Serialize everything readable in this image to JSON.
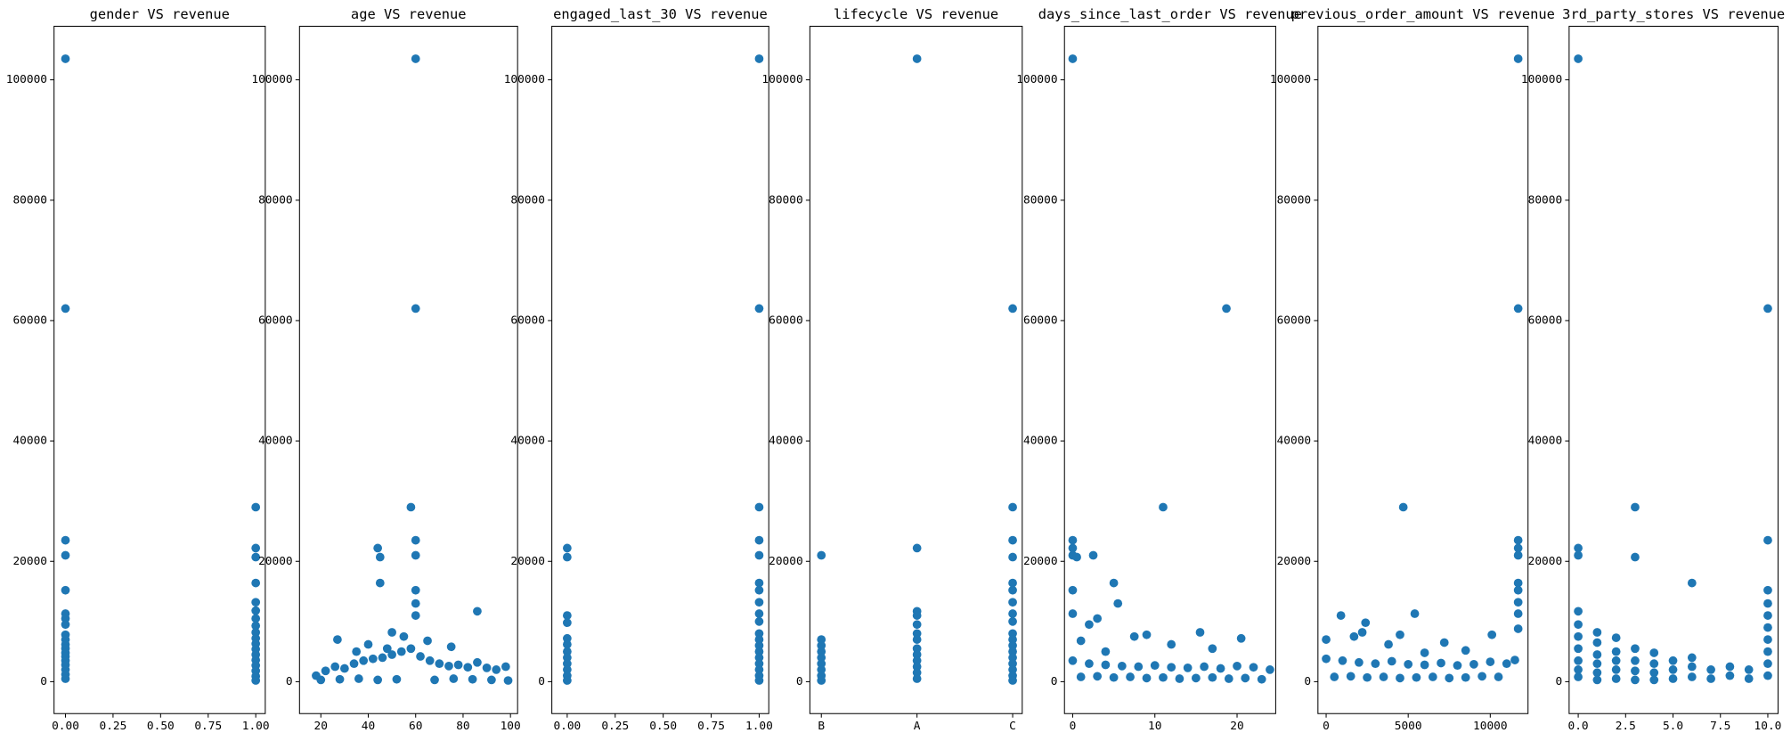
{
  "chart_data": [
    {
      "type": "scatter",
      "title": "gender VS revenue",
      "color": "#1f77b4",
      "x": [
        0,
        0,
        0,
        0,
        0,
        0,
        0,
        0,
        0,
        0,
        0,
        0,
        0,
        0,
        0,
        0,
        0,
        0,
        0,
        1,
        1,
        1,
        1,
        1,
        1,
        1,
        1,
        1,
        1,
        1,
        1,
        1,
        1,
        1,
        1,
        1,
        1
      ],
      "y": [
        103500,
        62000,
        23500,
        21000,
        15200,
        11300,
        10500,
        9500,
        7800,
        7000,
        6200,
        5500,
        4800,
        4200,
        3500,
        2800,
        2000,
        1200,
        500,
        29000,
        22200,
        20700,
        16400,
        13200,
        11800,
        10500,
        9300,
        8200,
        7200,
        6300,
        5400,
        4500,
        3600,
        2700,
        1800,
        900,
        200
      ],
      "xlim": [
        -0.06,
        1.05
      ],
      "ylim": [
        -5300,
        108900
      ],
      "xticks": [
        {
          "value": 0,
          "label": "0.00"
        },
        {
          "value": 0.25,
          "label": "0.25"
        },
        {
          "value": 0.5,
          "label": "0.50"
        },
        {
          "value": 0.75,
          "label": "0.75"
        },
        {
          "value": 1,
          "label": "1.00"
        }
      ],
      "yticks": [
        0,
        20000,
        40000,
        60000,
        80000,
        100000
      ]
    },
    {
      "type": "scatter",
      "title": "age VS revenue",
      "color": "#1f77b4",
      "x": [
        60,
        60,
        58,
        60,
        60,
        44,
        45,
        45,
        60,
        60,
        60,
        86,
        50,
        55,
        27,
        40,
        65,
        75,
        35,
        48,
        18,
        22,
        26,
        30,
        34,
        38,
        42,
        46,
        50,
        54,
        58,
        62,
        66,
        70,
        74,
        78,
        82,
        86,
        90,
        94,
        98,
        20,
        28,
        36,
        44,
        52,
        68,
        76,
        84,
        92,
        99
      ],
      "y": [
        103500,
        62000,
        29000,
        23500,
        21000,
        22200,
        20700,
        16400,
        15200,
        13000,
        11000,
        11700,
        8200,
        7500,
        7000,
        6200,
        6800,
        5800,
        5000,
        5500,
        1000,
        1800,
        2500,
        2200,
        3000,
        3500,
        3800,
        4000,
        4500,
        5000,
        5500,
        4200,
        3500,
        3000,
        2600,
        2800,
        2400,
        3200,
        2300,
        2000,
        2500,
        300,
        400,
        500,
        300,
        400,
        300,
        500,
        400,
        300,
        200
      ],
      "xlim": [
        11,
        103
      ],
      "ylim": [
        -5300,
        108900
      ],
      "xticks": [
        20,
        40,
        60,
        80,
        100
      ],
      "yticks": [
        0,
        20000,
        40000,
        60000,
        80000,
        100000
      ]
    },
    {
      "type": "scatter",
      "title": "engaged_last_30 VS revenue",
      "color": "#1f77b4",
      "x": [
        0,
        0,
        0,
        0,
        0,
        0,
        0,
        0,
        0,
        0,
        0,
        0,
        1,
        1,
        1,
        1,
        1,
        1,
        1,
        1,
        1,
        1,
        1,
        1,
        1,
        1,
        1,
        1,
        1,
        1,
        1
      ],
      "y": [
        22200,
        20700,
        11000,
        9800,
        7200,
        6200,
        5000,
        4000,
        3000,
        2000,
        1000,
        200,
        103500,
        62000,
        29000,
        23500,
        21000,
        16400,
        15200,
        13200,
        11300,
        10000,
        8000,
        7000,
        6000,
        5000,
        4000,
        3000,
        2000,
        1000,
        200
      ],
      "xlim": [
        -0.08,
        1.05
      ],
      "ylim": [
        -5300,
        108900
      ],
      "xticks": [
        {
          "value": 0,
          "label": "0.00"
        },
        {
          "value": 0.25,
          "label": "0.25"
        },
        {
          "value": 0.5,
          "label": "0.50"
        },
        {
          "value": 0.75,
          "label": "0.75"
        },
        {
          "value": 1,
          "label": "1.00"
        }
      ],
      "yticks": [
        0,
        20000,
        40000,
        60000,
        80000,
        100000
      ]
    },
    {
      "type": "scatter",
      "title": "lifecycle VS revenue",
      "color": "#1f77b4",
      "categories": [
        "B",
        "A",
        "C"
      ],
      "x": [
        "B",
        "B",
        "B",
        "B",
        "B",
        "B",
        "B",
        "B",
        "B",
        "A",
        "A",
        "A",
        "A",
        "A",
        "A",
        "A",
        "A",
        "A",
        "A",
        "A",
        "A",
        "A",
        "C",
        "C",
        "C",
        "C",
        "C",
        "C",
        "C",
        "C",
        "C",
        "C",
        "C",
        "C",
        "C",
        "C",
        "C",
        "C",
        "C",
        "C"
      ],
      "y": [
        21000,
        7000,
        6000,
        5000,
        4000,
        3000,
        2000,
        1000,
        200,
        103500,
        22200,
        11700,
        11000,
        9500,
        8000,
        7000,
        5500,
        4500,
        3500,
        2500,
        1500,
        500,
        62000,
        29000,
        23500,
        20700,
        16400,
        15200,
        13200,
        11300,
        10000,
        8000,
        7000,
        6000,
        5000,
        4000,
        3000,
        2000,
        1000,
        200
      ],
      "xlim": [
        -0.12,
        2.1
      ],
      "ylim": [
        -5300,
        108900
      ],
      "yticks": [
        0,
        20000,
        40000,
        60000,
        80000,
        100000
      ]
    },
    {
      "type": "scatter",
      "title": "days_since_last_order VS revenue",
      "color": "#1f77b4",
      "x": [
        0,
        18.7,
        11,
        0,
        0,
        0,
        2.5,
        0.5,
        5,
        0,
        5.5,
        0,
        3,
        2,
        7.5,
        9,
        15.5,
        20.5,
        12,
        17,
        1,
        4,
        0,
        2,
        4,
        6,
        8,
        10,
        12,
        14,
        16,
        18,
        20,
        22,
        24,
        1,
        3,
        5,
        7,
        9,
        11,
        13,
        15,
        17,
        19,
        21,
        23
      ],
      "y": [
        103500,
        62000,
        29000,
        23500,
        22200,
        21000,
        21000,
        20700,
        16400,
        15200,
        13000,
        11300,
        10500,
        9500,
        7500,
        7800,
        8200,
        7200,
        6200,
        5500,
        6800,
        5000,
        3500,
        3000,
        2800,
        2600,
        2500,
        2700,
        2400,
        2300,
        2500,
        2200,
        2600,
        2400,
        2000,
        800,
        900,
        700,
        800,
        600,
        700,
        500,
        600,
        700,
        500,
        600,
        400
      ],
      "xlim": [
        -1,
        24.7
      ],
      "ylim": [
        -5300,
        108900
      ],
      "xticks": [
        0,
        10,
        20
      ],
      "yticks": [
        0,
        20000,
        40000,
        60000,
        80000,
        100000
      ]
    },
    {
      "type": "scatter",
      "title": "previous_order_amount VS revenue",
      "color": "#1f77b4",
      "x": [
        11700,
        11700,
        4700,
        11700,
        11700,
        11700,
        11700,
        11700,
        11700,
        11700,
        5400,
        900,
        2400,
        2200,
        1700,
        4500,
        10100,
        0,
        3800,
        7200,
        8500,
        6000,
        11700,
        0,
        1000,
        2000,
        3000,
        4000,
        5000,
        6000,
        7000,
        8000,
        9000,
        10000,
        11000,
        11500,
        500,
        1500,
        2500,
        3500,
        4500,
        5500,
        6500,
        7500,
        8500,
        9500,
        10500
      ],
      "y": [
        103500,
        62000,
        29000,
        23500,
        22200,
        21000,
        16400,
        15200,
        13200,
        11300,
        11300,
        11000,
        9800,
        8200,
        7500,
        7800,
        7800,
        7000,
        6200,
        6500,
        5200,
        4800,
        8800,
        3800,
        3500,
        3200,
        3000,
        3400,
        2900,
        2800,
        3100,
        2700,
        2900,
        3300,
        3000,
        3600,
        800,
        900,
        700,
        800,
        600,
        700,
        800,
        600,
        700,
        900,
        800
      ],
      "xlim": [
        -500,
        12300
      ],
      "ylim": [
        -5300,
        108900
      ],
      "xticks": [
        0,
        5000,
        10000
      ],
      "yticks": [
        0,
        20000,
        40000,
        60000,
        80000,
        100000
      ]
    },
    {
      "type": "scatter",
      "title": "3rd_party_stores VS revenue",
      "color": "#1f77b4",
      "x": [
        0,
        0,
        0,
        0,
        0,
        0,
        0,
        0,
        0,
        0,
        1,
        1,
        1,
        1,
        1,
        1,
        2,
        2,
        2,
        2,
        2,
        3,
        3,
        3,
        3,
        3,
        3,
        4,
        4,
        4,
        4,
        5,
        5,
        5,
        6,
        6,
        6,
        6,
        7,
        7,
        8,
        8,
        9,
        9,
        10,
        10,
        10,
        10,
        10,
        10,
        10,
        10,
        10,
        10
      ],
      "y": [
        103500,
        22200,
        21000,
        11700,
        9500,
        7500,
        5500,
        3500,
        2000,
        800,
        8200,
        6500,
        4500,
        3000,
        1500,
        300,
        7300,
        5000,
        3500,
        2000,
        500,
        29000,
        20700,
        5500,
        3500,
        1800,
        300,
        4800,
        3000,
        1500,
        300,
        3500,
        2000,
        500,
        16400,
        4000,
        2500,
        800,
        2000,
        500,
        2500,
        1000,
        2000,
        500,
        62000,
        23500,
        15200,
        13000,
        11000,
        9000,
        7000,
        5000,
        3000,
        1000
      ],
      "xlim": [
        -0.48,
        10.54
      ],
      "ylim": [
        -5300,
        108900
      ],
      "xticks": [
        {
          "value": 0,
          "label": "0.0"
        },
        {
          "value": 2.5,
          "label": "2.5"
        },
        {
          "value": 5,
          "label": "5.0"
        },
        {
          "value": 7.5,
          "label": "7.5"
        },
        {
          "value": 10,
          "label": "10.0"
        }
      ],
      "yticks": [
        0,
        20000,
        40000,
        60000,
        80000,
        100000
      ]
    }
  ]
}
